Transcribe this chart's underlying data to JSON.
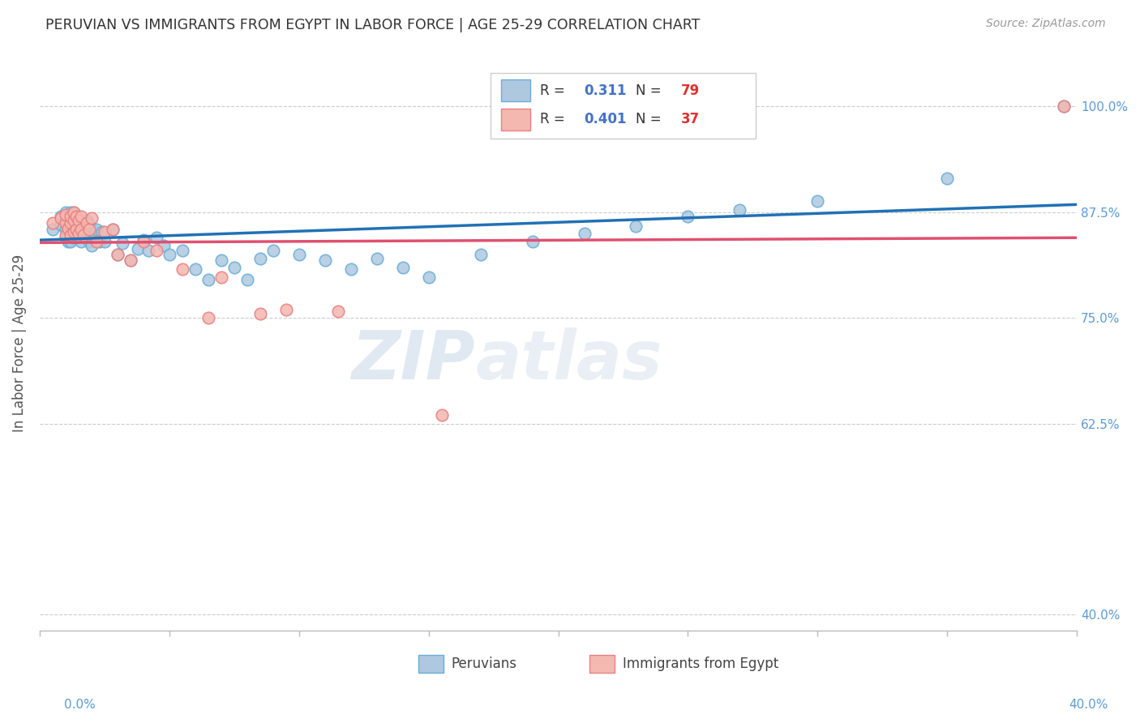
{
  "title": "PERUVIAN VS IMMIGRANTS FROM EGYPT IN LABOR FORCE | AGE 25-29 CORRELATION CHART",
  "source_text": "Source: ZipAtlas.com",
  "ylabel": "In Labor Force | Age 25-29",
  "x_tick_left_label": "0.0%",
  "x_tick_right_label": "40.0%",
  "y_tick_positions": [
    0.4,
    0.625,
    0.75,
    0.875,
    1.0
  ],
  "y_tick_labels": [
    "40.0%",
    "62.5%",
    "75.0%",
    "87.5%",
    "100.0%"
  ],
  "xlim": [
    0.0,
    0.4
  ],
  "ylim": [
    0.38,
    1.06
  ],
  "blue_R": 0.311,
  "blue_N": 79,
  "pink_R": 0.401,
  "pink_N": 37,
  "blue_color": "#aec8e0",
  "blue_edge_color": "#6aaed6",
  "pink_color": "#f4b8b0",
  "pink_edge_color": "#e88080",
  "blue_line_color": "#2171b5",
  "pink_line_color": "#e05070",
  "legend_label_blue": "Peruvians",
  "legend_label_pink": "Immigrants from Egypt",
  "watermark_zip": "ZIP",
  "watermark_atlas": "atlas",
  "grid_color": "#cccccc",
  "bg_color": "#ffffff",
  "title_color": "#333333",
  "tick_color": "#5b9bd5",
  "blue_scatter_x": [
    0.005,
    0.008,
    0.008,
    0.01,
    0.01,
    0.01,
    0.01,
    0.011,
    0.011,
    0.011,
    0.012,
    0.012,
    0.012,
    0.012,
    0.012,
    0.013,
    0.013,
    0.013,
    0.013,
    0.013,
    0.013,
    0.014,
    0.014,
    0.014,
    0.014,
    0.015,
    0.015,
    0.015,
    0.016,
    0.016,
    0.016,
    0.016,
    0.017,
    0.017,
    0.018,
    0.018,
    0.018,
    0.019,
    0.019,
    0.02,
    0.02,
    0.021,
    0.022,
    0.023,
    0.024,
    0.025,
    0.028,
    0.03,
    0.032,
    0.035,
    0.038,
    0.04,
    0.042,
    0.045,
    0.048,
    0.05,
    0.055,
    0.06,
    0.065,
    0.07,
    0.075,
    0.08,
    0.085,
    0.09,
    0.1,
    0.11,
    0.12,
    0.13,
    0.14,
    0.15,
    0.17,
    0.19,
    0.21,
    0.23,
    0.25,
    0.27,
    0.3,
    0.35,
    0.395
  ],
  "blue_scatter_y": [
    0.855,
    0.86,
    0.87,
    0.845,
    0.855,
    0.865,
    0.875,
    0.84,
    0.855,
    0.865,
    0.84,
    0.85,
    0.86,
    0.87,
    0.875,
    0.845,
    0.855,
    0.86,
    0.865,
    0.87,
    0.875,
    0.845,
    0.855,
    0.86,
    0.87,
    0.848,
    0.855,
    0.862,
    0.84,
    0.852,
    0.858,
    0.865,
    0.848,
    0.862,
    0.845,
    0.855,
    0.865,
    0.84,
    0.86,
    0.835,
    0.855,
    0.848,
    0.855,
    0.84,
    0.852,
    0.84,
    0.855,
    0.825,
    0.838,
    0.818,
    0.832,
    0.842,
    0.83,
    0.845,
    0.835,
    0.825,
    0.83,
    0.808,
    0.795,
    0.818,
    0.81,
    0.795,
    0.82,
    0.83,
    0.825,
    0.818,
    0.808,
    0.82,
    0.81,
    0.798,
    0.825,
    0.84,
    0.85,
    0.858,
    0.87,
    0.878,
    0.888,
    0.915,
    1.0
  ],
  "pink_scatter_x": [
    0.005,
    0.008,
    0.01,
    0.01,
    0.01,
    0.011,
    0.012,
    0.012,
    0.012,
    0.013,
    0.013,
    0.013,
    0.014,
    0.014,
    0.015,
    0.015,
    0.016,
    0.016,
    0.017,
    0.018,
    0.019,
    0.02,
    0.022,
    0.025,
    0.028,
    0.03,
    0.035,
    0.04,
    0.045,
    0.055,
    0.065,
    0.07,
    0.085,
    0.095,
    0.115,
    0.155,
    0.395
  ],
  "pink_scatter_y": [
    0.862,
    0.868,
    0.848,
    0.862,
    0.872,
    0.856,
    0.848,
    0.862,
    0.87,
    0.852,
    0.865,
    0.875,
    0.855,
    0.87,
    0.85,
    0.865,
    0.855,
    0.87,
    0.848,
    0.862,
    0.855,
    0.868,
    0.84,
    0.852,
    0.855,
    0.825,
    0.818,
    0.84,
    0.83,
    0.808,
    0.75,
    0.798,
    0.755,
    0.76,
    0.758,
    0.635,
    1.0
  ]
}
